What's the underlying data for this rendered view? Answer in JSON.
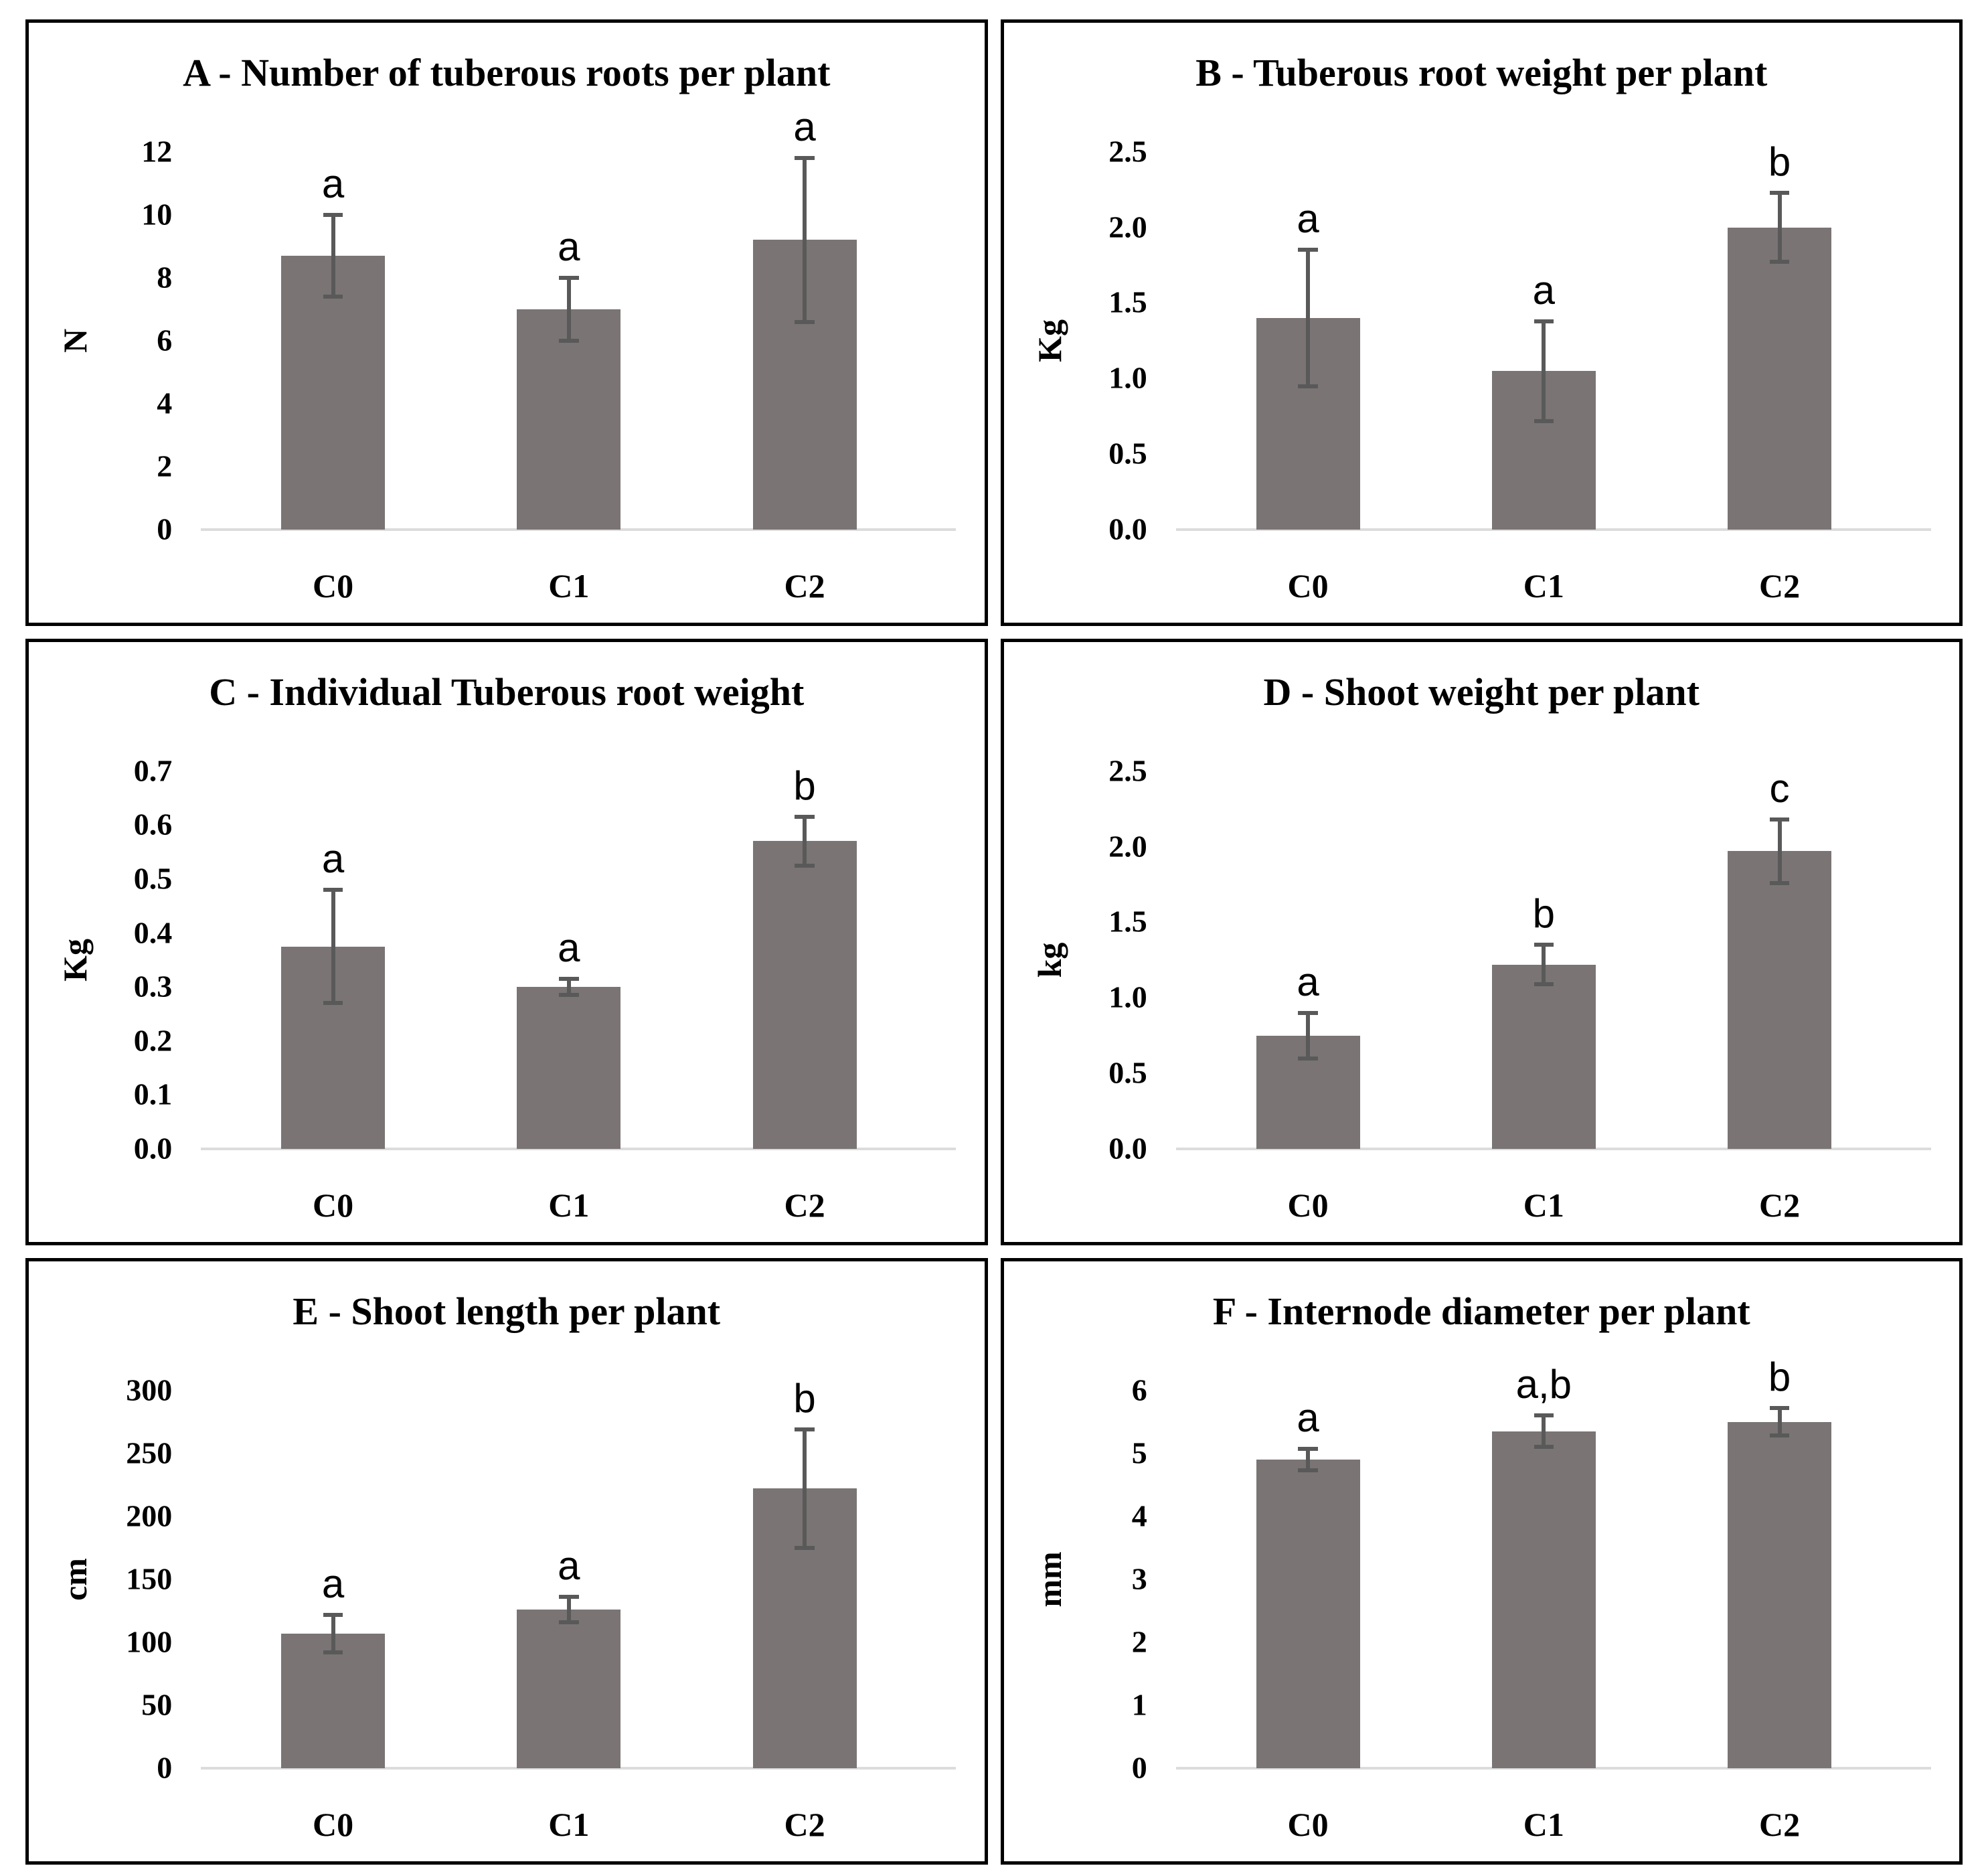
{
  "figure": {
    "layout": "2x3-grid-of-panels",
    "bar_color": "#7a7474",
    "error_bar_color": "#595959",
    "baseline_color": "#dcdcdc",
    "panel_border_color": "#000000",
    "categories": [
      "C0",
      "C1",
      "C2"
    ]
  },
  "chart_data": [
    {
      "panel": "A",
      "type": "bar",
      "title": "A - Number of tuberous roots per plant",
      "ylabel": "N",
      "xlabel": "",
      "categories": [
        "C0",
        "C1",
        "C2"
      ],
      "values": [
        8.7,
        7.0,
        9.2
      ],
      "errors": [
        1.3,
        1.0,
        2.6
      ],
      "sig_letters": [
        "a",
        "a",
        "a"
      ],
      "ylim": [
        0,
        12
      ],
      "yticks": [
        "0",
        "2",
        "4",
        "6",
        "8",
        "10",
        "12"
      ],
      "grid": false,
      "legend": "none"
    },
    {
      "panel": "B",
      "type": "bar",
      "title": "B - Tuberous root weight per plant",
      "ylabel": "Kg",
      "xlabel": "",
      "categories": [
        "C0",
        "C1",
        "C2"
      ],
      "values": [
        1.4,
        1.05,
        2.0
      ],
      "errors": [
        0.45,
        0.33,
        0.23
      ],
      "sig_letters": [
        "a",
        "a",
        "b"
      ],
      "ylim": [
        0,
        2.5
      ],
      "yticks": [
        "0.0",
        "0.5",
        "1.0",
        "1.5",
        "2.0",
        "2.5"
      ],
      "grid": false,
      "legend": "none"
    },
    {
      "panel": "C",
      "type": "bar",
      "title": "C - Individual Tuberous root weight",
      "ylabel": "Kg",
      "xlabel": "",
      "categories": [
        "C0",
        "C1",
        "C2"
      ],
      "values": [
        0.375,
        0.3,
        0.57
      ],
      "errors": [
        0.105,
        0.015,
        0.045
      ],
      "sig_letters": [
        "a",
        "a",
        "b"
      ],
      "ylim": [
        0,
        0.7
      ],
      "yticks": [
        "0.0",
        "0.1",
        "0.2",
        "0.3",
        "0.4",
        "0.5",
        "0.6",
        "0.7"
      ],
      "grid": false,
      "legend": "none"
    },
    {
      "panel": "D",
      "type": "bar",
      "title": "D - Shoot weight per plant",
      "ylabel": "kg",
      "xlabel": "",
      "categories": [
        "C0",
        "C1",
        "C2"
      ],
      "values": [
        0.75,
        1.22,
        1.97
      ],
      "errors": [
        0.15,
        0.13,
        0.21
      ],
      "sig_letters": [
        "a",
        "b",
        "c"
      ],
      "ylim": [
        0,
        2.5
      ],
      "yticks": [
        "0.0",
        "0.5",
        "1.0",
        "1.5",
        "2.0",
        "2.5"
      ],
      "grid": false,
      "legend": "none"
    },
    {
      "panel": "E",
      "type": "bar",
      "title": "E - Shoot length per plant",
      "ylabel": "cm",
      "xlabel": "",
      "categories": [
        "C0",
        "C1",
        "C2"
      ],
      "values": [
        107,
        126,
        222
      ],
      "errors": [
        15,
        10,
        47
      ],
      "sig_letters": [
        "a",
        "a",
        "b"
      ],
      "ylim": [
        0,
        300
      ],
      "yticks": [
        "0",
        "50",
        "100",
        "150",
        "200",
        "250",
        "300"
      ],
      "grid": false,
      "legend": "none"
    },
    {
      "panel": "F",
      "type": "bar",
      "title": "F - Internode diameter per plant",
      "ylabel": "mm",
      "xlabel": "",
      "categories": [
        "C0",
        "C1",
        "C2"
      ],
      "values": [
        4.9,
        5.35,
        5.5
      ],
      "errors": [
        0.17,
        0.25,
        0.22
      ],
      "sig_letters": [
        "a",
        "a,b",
        "b"
      ],
      "ylim": [
        0,
        6
      ],
      "yticks": [
        "0",
        "1",
        "2",
        "3",
        "4",
        "5",
        "6"
      ],
      "grid": false,
      "legend": "none"
    }
  ]
}
